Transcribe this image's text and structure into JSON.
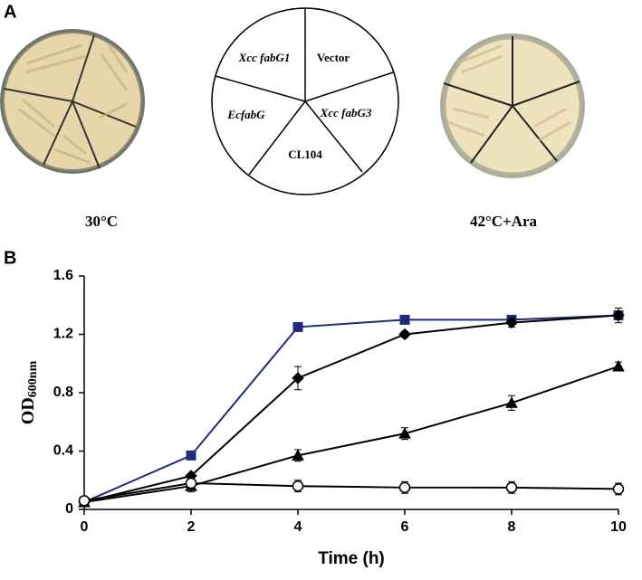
{
  "panel_labels": [
    "A",
    "B"
  ],
  "panel_a": {
    "sectors": [
      "Xcc fabG1",
      "Vector",
      "EcfabG",
      "Xcc fabG3",
      "CL104"
    ],
    "conditions": [
      "30°C",
      "42°C+Ara"
    ]
  },
  "chart_data": {
    "type": "line",
    "x_label": "Time (h)",
    "y_label": "OD",
    "y_label_subscript": "600nm",
    "x": [
      0,
      2,
      4,
      6,
      8,
      10
    ],
    "xlim": [
      0,
      10
    ],
    "xticks": [
      0,
      2,
      4,
      6,
      8,
      10
    ],
    "ylim": [
      0,
      1.6
    ],
    "yticks": [
      0,
      0.4,
      0.8,
      1.2,
      1.6
    ],
    "series": [
      {
        "color": "#1f2a7a",
        "marker": "square",
        "marker_fill": "#1f2a7a",
        "values": [
          0.05,
          0.37,
          1.25,
          1.3,
          1.3,
          1.33
        ],
        "errors": [
          0.01,
          0.01,
          0.01,
          0.03,
          0.01,
          0.02
        ]
      },
      {
        "color": "#000000",
        "marker": "diamond",
        "marker_fill": "#000000",
        "values": [
          0.05,
          0.23,
          0.9,
          1.2,
          1.28,
          1.33
        ],
        "errors": [
          0.01,
          0.01,
          0.08,
          0.02,
          0.03,
          0.05
        ]
      },
      {
        "color": "#000000",
        "marker": "triangle",
        "marker_fill": "#000000",
        "values": [
          0.05,
          0.16,
          0.37,
          0.52,
          0.73,
          0.98
        ],
        "errors": [
          0.01,
          0.02,
          0.04,
          0.04,
          0.05,
          0.03
        ]
      },
      {
        "color": "#000000",
        "marker": "circle",
        "marker_fill": "#ffffff",
        "values": [
          0.06,
          0.18,
          0.16,
          0.15,
          0.15,
          0.14
        ],
        "errors": [
          0.02,
          0.06,
          0.04,
          0.04,
          0.04,
          0.04
        ]
      }
    ]
  }
}
